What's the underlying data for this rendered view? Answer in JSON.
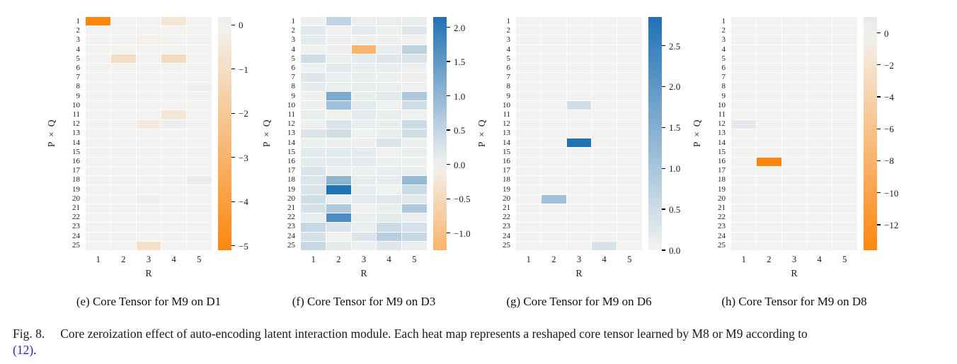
{
  "figure_caption": {
    "prefix": "Fig. 8.",
    "text": "Core zeroization effect of auto-encoding latent interaction module. Each heat map represents a reshaped core tensor learned by M8 or M9 according to",
    "link": "(12)",
    "link_suffix": "."
  },
  "colors": {
    "zero": "#f2f3f0",
    "positive_max": "#2171b5",
    "negative_max": "#fd860d",
    "caption_link": "#2222cc"
  },
  "chart_data": [
    {
      "type": "heatmap",
      "title": "(e) Core Tensor for M9 on D1",
      "xlabel": "R",
      "ylabel": "P × Q",
      "x_ticklabels": [
        "1",
        "2",
        "3",
        "4",
        "5"
      ],
      "y_ticklabels": [
        "1",
        "2",
        "3",
        "4",
        "5",
        "6",
        "7",
        "8",
        "9",
        "10",
        "11",
        "12",
        "13",
        "14",
        "15",
        "16",
        "17",
        "18",
        "19",
        "20",
        "21",
        "22",
        "23",
        "24",
        "25"
      ],
      "vmin": -5.1,
      "vmax": 0.18,
      "colorbar_ticks": [
        {
          "v": 0,
          "label": "0"
        },
        {
          "v": -1,
          "label": "−1"
        },
        {
          "v": -2,
          "label": "−2"
        },
        {
          "v": -3,
          "label": "−3"
        },
        {
          "v": -4,
          "label": "−4"
        },
        {
          "v": -5,
          "label": "−5"
        }
      ],
      "matrix": [
        [
          -5.1,
          0,
          0,
          -0.6,
          0
        ],
        [
          0,
          0,
          0,
          0,
          0
        ],
        [
          0,
          0,
          -0.15,
          0,
          0
        ],
        [
          0,
          0,
          0,
          0,
          0
        ],
        [
          0,
          -1.0,
          0,
          -1.1,
          0
        ],
        [
          0,
          0,
          0,
          0,
          0
        ],
        [
          0,
          0,
          0,
          0,
          0
        ],
        [
          0,
          0,
          0,
          0,
          0.12
        ],
        [
          0,
          0,
          0,
          0,
          0
        ],
        [
          0,
          0,
          0,
          0,
          0
        ],
        [
          0,
          0,
          0,
          -0.6,
          0
        ],
        [
          0,
          0,
          -0.45,
          0.15,
          0
        ],
        [
          0,
          0,
          0,
          0,
          0
        ],
        [
          0,
          0,
          0,
          0,
          0
        ],
        [
          0,
          0,
          0,
          0,
          0
        ],
        [
          0,
          0,
          0,
          0,
          0
        ],
        [
          0,
          0,
          0,
          0,
          0
        ],
        [
          0,
          0,
          0,
          0,
          0.18
        ],
        [
          0,
          0,
          0,
          0,
          0
        ],
        [
          0,
          0,
          0.12,
          0,
          0
        ],
        [
          0,
          0,
          0,
          0,
          0
        ],
        [
          0,
          0,
          0,
          0,
          0
        ],
        [
          0,
          0,
          0,
          0,
          0
        ],
        [
          0,
          0,
          0,
          0,
          0
        ],
        [
          0,
          0,
          -0.9,
          0,
          0
        ]
      ]
    },
    {
      "type": "heatmap",
      "title": "(f) Core Tensor for M9 on D3",
      "xlabel": "R",
      "ylabel": "P × Q",
      "x_ticklabels": [
        "1",
        "2",
        "3",
        "4",
        "5"
      ],
      "y_ticklabels": [
        "1",
        "2",
        "3",
        "4",
        "5",
        "6",
        "7",
        "8",
        "9",
        "10",
        "11",
        "12",
        "13",
        "14",
        "15",
        "16",
        "17",
        "18",
        "19",
        "20",
        "21",
        "22",
        "23",
        "24",
        "25"
      ],
      "vmin": -1.25,
      "vmax": 2.15,
      "colorbar_ticks": [
        {
          "v": 2.0,
          "label": "2.0"
        },
        {
          "v": 1.5,
          "label": "1.5"
        },
        {
          "v": 1.0,
          "label": "1.0"
        },
        {
          "v": 0.5,
          "label": "0.5"
        },
        {
          "v": 0.0,
          "label": "0.0"
        },
        {
          "v": -0.5,
          "label": "−0.5"
        },
        {
          "v": -1.0,
          "label": "−1.0"
        }
      ],
      "matrix": [
        [
          0.05,
          0.5,
          0.08,
          0.08,
          0.1
        ],
        [
          0.18,
          0.03,
          0.15,
          0.05,
          0.2
        ],
        [
          0.15,
          0.05,
          0.05,
          0.05,
          0.03
        ],
        [
          0.03,
          0.05,
          -1.25,
          0.1,
          0.55
        ],
        [
          0.35,
          0.05,
          0.12,
          0.2,
          0.25
        ],
        [
          0.05,
          0.15,
          0.08,
          0.1,
          0.05
        ],
        [
          0.2,
          0.08,
          0.1,
          0.05,
          0.05
        ],
        [
          0.12,
          0.08,
          0.1,
          0.08,
          0.03
        ],
        [
          0.05,
          1.2,
          0.1,
          0.15,
          0.7
        ],
        [
          0.05,
          0.85,
          0.15,
          0.03,
          0.35
        ],
        [
          0.1,
          0.03,
          0.15,
          0.1,
          0.03
        ],
        [
          0.05,
          0.25,
          0.1,
          0.1,
          0.4
        ],
        [
          0.25,
          0.35,
          0.03,
          0.1,
          0.35
        ],
        [
          0.05,
          0.05,
          0.05,
          0.25,
          0.05
        ],
        [
          0.15,
          0.15,
          0.12,
          0.03,
          0.08
        ],
        [
          0.15,
          0.15,
          0.15,
          0.05,
          0.05
        ],
        [
          0.25,
          0.05,
          0.05,
          0.1,
          0.1
        ],
        [
          0.25,
          1.05,
          0.12,
          0.12,
          0.95
        ],
        [
          0.25,
          2.15,
          0.1,
          0.03,
          0.4
        ],
        [
          0.35,
          0.08,
          0.15,
          0.18,
          0.18
        ],
        [
          0.3,
          0.7,
          0.03,
          0.08,
          0.7
        ],
        [
          0.1,
          1.7,
          0.08,
          0.15,
          0.08
        ],
        [
          0.45,
          0.25,
          0.08,
          0.4,
          0.3
        ],
        [
          0.3,
          0.03,
          0.25,
          0.6,
          0.45
        ],
        [
          0.45,
          0.15,
          0.05,
          0.2,
          0.08
        ]
      ]
    },
    {
      "type": "heatmap",
      "title": "(g) Core Tensor for M9 on D6",
      "xlabel": "R",
      "ylabel": "P × Q",
      "x_ticklabels": [
        "1",
        "2",
        "3",
        "4",
        "5"
      ],
      "y_ticklabels": [
        "1",
        "2",
        "3",
        "4",
        "5",
        "6",
        "7",
        "8",
        "9",
        "10",
        "11",
        "12",
        "13",
        "14",
        "15",
        "16",
        "17",
        "18",
        "19",
        "20",
        "21",
        "22",
        "23",
        "24",
        "25"
      ],
      "vmin": 0,
      "vmax": 2.85,
      "colorbar_ticks": [
        {
          "v": 2.5,
          "label": "2.5"
        },
        {
          "v": 2.0,
          "label": "2.0"
        },
        {
          "v": 1.5,
          "label": "1.5"
        },
        {
          "v": 1.0,
          "label": "1.0"
        },
        {
          "v": 0.5,
          "label": "0.5"
        },
        {
          "v": 0.0,
          "label": "0.0"
        }
      ],
      "matrix": [
        [
          0,
          0,
          0,
          0,
          0
        ],
        [
          0,
          0,
          0,
          0,
          0
        ],
        [
          0,
          0,
          0,
          0,
          0
        ],
        [
          0,
          0,
          0,
          0,
          0
        ],
        [
          0,
          0,
          0,
          0,
          0
        ],
        [
          0,
          0,
          0,
          0,
          0
        ],
        [
          0,
          0,
          0,
          0,
          0
        ],
        [
          0,
          0,
          0,
          0,
          0
        ],
        [
          0,
          0,
          0,
          0,
          0
        ],
        [
          0,
          0,
          0.45,
          0,
          0
        ],
        [
          0,
          0,
          0,
          0,
          0
        ],
        [
          0,
          0,
          0,
          0,
          0
        ],
        [
          0,
          0,
          0,
          0,
          0
        ],
        [
          0,
          0,
          2.85,
          0,
          0
        ],
        [
          0,
          0,
          0,
          0,
          0
        ],
        [
          0,
          0,
          0,
          0,
          0
        ],
        [
          0,
          0,
          0,
          0,
          0
        ],
        [
          0,
          0,
          0,
          0,
          0
        ],
        [
          0,
          0,
          0,
          0,
          0
        ],
        [
          0,
          1.1,
          0,
          0,
          0
        ],
        [
          0,
          0,
          0,
          0,
          0
        ],
        [
          0,
          0,
          0,
          0,
          0
        ],
        [
          0,
          0,
          0,
          0,
          0
        ],
        [
          0,
          0,
          0,
          0,
          0
        ],
        [
          0,
          0,
          0,
          0.35,
          0
        ]
      ]
    },
    {
      "type": "heatmap",
      "title": "(h) Core Tensor for M9 on D8",
      "xlabel": "R",
      "ylabel": "P × Q",
      "x_ticklabels": [
        "1",
        "2",
        "3",
        "4",
        "5"
      ],
      "y_ticklabels": [
        "1",
        "2",
        "3",
        "4",
        "5",
        "6",
        "7",
        "8",
        "9",
        "10",
        "11",
        "12",
        "13",
        "14",
        "15",
        "16",
        "17",
        "18",
        "19",
        "20",
        "21",
        "22",
        "23",
        "24",
        "25"
      ],
      "vmin": -13.6,
      "vmax": 1.0,
      "colorbar_ticks": [
        {
          "v": 0,
          "label": "0"
        },
        {
          "v": -2,
          "label": "−2"
        },
        {
          "v": -4,
          "label": "−4"
        },
        {
          "v": -6,
          "label": "−6"
        },
        {
          "v": -8,
          "label": "−8"
        },
        {
          "v": -10,
          "label": "−10"
        },
        {
          "v": -12,
          "label": "−12"
        }
      ],
      "matrix": [
        [
          0,
          0,
          0,
          0,
          0
        ],
        [
          0,
          0,
          0,
          0,
          0
        ],
        [
          0,
          0,
          0,
          0,
          0
        ],
        [
          0,
          0,
          0,
          0,
          0
        ],
        [
          0,
          0,
          0,
          0,
          0
        ],
        [
          0,
          0,
          0,
          0,
          0
        ],
        [
          0,
          0,
          0,
          0,
          0
        ],
        [
          0,
          0,
          0,
          0,
          0
        ],
        [
          0,
          0,
          0,
          0,
          0
        ],
        [
          0,
          0,
          0,
          0,
          0
        ],
        [
          0,
          0,
          0,
          0,
          0
        ],
        [
          1.0,
          0,
          0,
          0,
          0
        ],
        [
          0,
          0,
          0,
          0,
          0
        ],
        [
          0,
          0,
          0,
          0,
          0
        ],
        [
          0,
          0,
          0,
          0,
          0
        ],
        [
          0,
          -13.6,
          0,
          0,
          0
        ],
        [
          0,
          0,
          0,
          0,
          0
        ],
        [
          0,
          0,
          0,
          0,
          0
        ],
        [
          0,
          0,
          0,
          0,
          0
        ],
        [
          0,
          0,
          0,
          0,
          0
        ],
        [
          0,
          0,
          0,
          0,
          0
        ],
        [
          0,
          0,
          0,
          0,
          0
        ],
        [
          0,
          0,
          0,
          0,
          0
        ],
        [
          0,
          0,
          0,
          0,
          0
        ],
        [
          0,
          0,
          0,
          0,
          0
        ]
      ]
    }
  ]
}
